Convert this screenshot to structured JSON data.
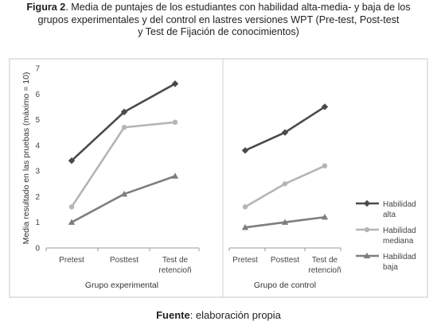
{
  "caption": {
    "label": "Figura 2",
    "line1_rest": ". Media de puntajes de los estudiantes con habilidad alta-media- y baja de los",
    "line2": "grupos experimentales y del control en lastres versiones WPT (Pre-test, Post-test",
    "line3": "y Test de Fijación de conocimientos)"
  },
  "source": {
    "label": "Fuente",
    "rest": ": elaboración propia"
  },
  "chart_data": {
    "type": "line",
    "ylabel": "Media resultado en las pruebas (máximo = 10)",
    "ylim": [
      0,
      7
    ],
    "yticks": [
      0,
      1,
      2,
      3,
      4,
      5,
      6,
      7
    ],
    "grid": false,
    "legend_position": "right",
    "colors": {
      "Habilidad alta": "#4a4a4a",
      "Habilidad mediana": "#b5b5b5",
      "Habilidad baja": "#7e7e7e"
    },
    "legend": [
      {
        "series": "Habilidad alta",
        "lines": [
          "Habilidad",
          "alta"
        ],
        "marker": "diamond"
      },
      {
        "series": "Habilidad mediana",
        "lines": [
          "Habilidad",
          "mediana"
        ],
        "marker": "circle"
      },
      {
        "series": "Habilidad baja",
        "lines": [
          "Habilidad",
          "baja"
        ],
        "marker": "triangle"
      }
    ],
    "panels": [
      {
        "xlabel": "Grupo experimental",
        "categories": [
          [
            "Pretest"
          ],
          [
            "Posttest"
          ],
          [
            "Test de",
            "retencioñ"
          ]
        ],
        "series": [
          {
            "name": "Habilidad alta",
            "values": [
              3.4,
              5.3,
              6.4
            ]
          },
          {
            "name": "Habilidad mediana",
            "values": [
              1.6,
              4.7,
              4.9
            ]
          },
          {
            "name": "Habilidad baja",
            "values": [
              1.0,
              2.1,
              2.8
            ]
          }
        ]
      },
      {
        "xlabel": "Grupo de control",
        "categories": [
          [
            "Pretest"
          ],
          [
            "Posttest"
          ],
          [
            "Test de",
            "retencioñ"
          ]
        ],
        "series": [
          {
            "name": "Habilidad alta",
            "values": [
              3.8,
              4.5,
              5.5
            ]
          },
          {
            "name": "Habilidad mediana",
            "values": [
              1.6,
              2.5,
              3.2
            ]
          },
          {
            "name": "Habilidad baja",
            "values": [
              0.8,
              1.0,
              1.2
            ]
          }
        ]
      }
    ]
  }
}
